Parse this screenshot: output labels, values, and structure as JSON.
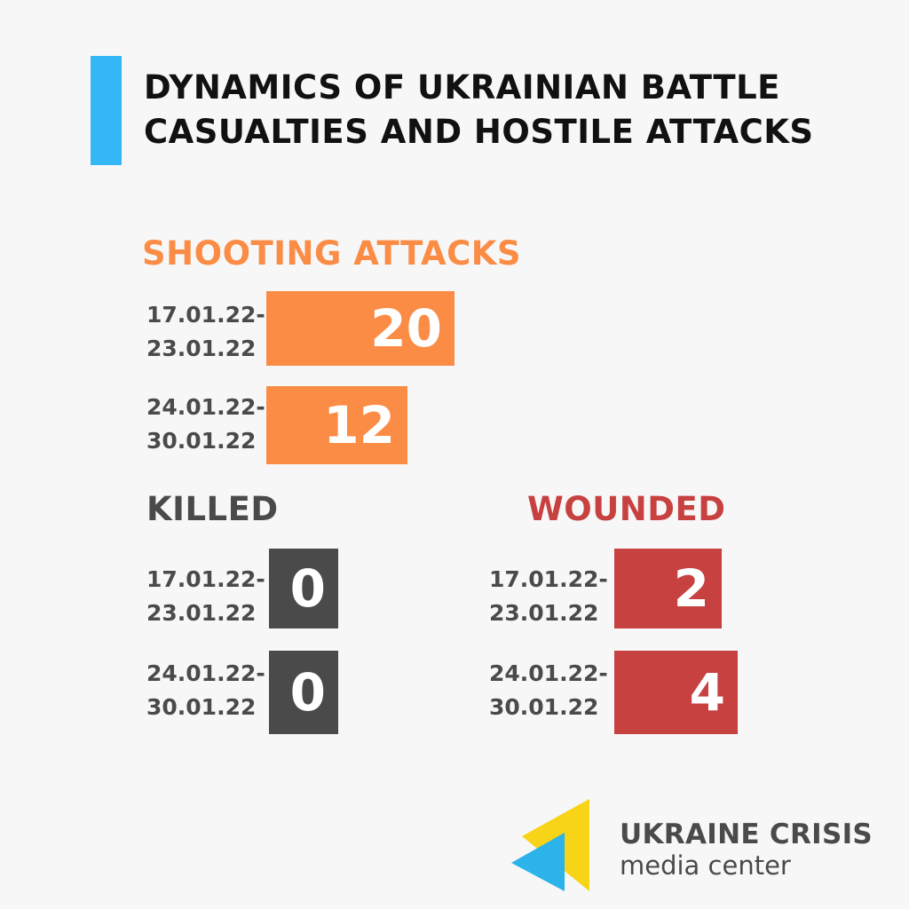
{
  "title": {
    "line1": "DYNAMICS OF UKRAINIAN BATTLE",
    "line2": "CASUALTIES AND HOSTILE ATTACKS"
  },
  "colors": {
    "accent": "#35b6f5",
    "shooting": "#fb8c46",
    "killed": "#4a4a4a",
    "wounded": "#c84141",
    "logo_yellow": "#f7d417",
    "logo_blue": "#2bb3ea"
  },
  "chart_data": [
    {
      "type": "bar",
      "title": "SHOOTING  ATTACKS",
      "categories": [
        {
          "start": "17.01.22-",
          "end": "23.01.22"
        },
        {
          "start": "24.01.22-",
          "end": "30.01.22"
        }
      ],
      "values": [
        20,
        12
      ]
    },
    {
      "type": "bar",
      "title": "KILLED",
      "categories": [
        {
          "start": "17.01.22-",
          "end": "23.01.22"
        },
        {
          "start": "24.01.22-",
          "end": "30.01.22"
        }
      ],
      "values": [
        0,
        0
      ]
    },
    {
      "type": "bar",
      "title": "WOUNDED",
      "categories": [
        {
          "start": "17.01.22-",
          "end": "23.01.22"
        },
        {
          "start": "24.01.22-",
          "end": "30.01.22"
        }
      ],
      "values": [
        2,
        4
      ]
    }
  ],
  "logo": {
    "line1": "UKRAINE CRISIS",
    "line2": "media center"
  }
}
